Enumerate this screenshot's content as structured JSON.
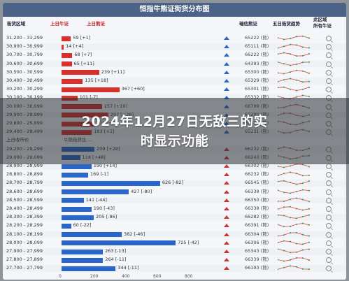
{
  "title": "恒指牛熊证街货分布图",
  "headers": {
    "range": "街货区域",
    "bull_prev": "上日牛证",
    "bear_prev": "上日熊证",
    "code": "瑞信熊证",
    "trend": "五日街货趋势",
    "all_bear_1": "此区域",
    "all_bear_2": "所有牛证"
  },
  "overlay": {
    "line1": "2024年12月27日无敌三的实",
    "line2": "时显示功能"
  },
  "rows": [
    {
      "range": "31,200 - 31,299",
      "value": "59 [+1]",
      "bar": 59,
      "code": "65222 (熊)",
      "color": "red"
    },
    {
      "range": "30,900 - 30,999",
      "value": "14 [+4]",
      "bar": 14,
      "code": "65111 (熊)",
      "color": "red"
    },
    {
      "range": "30,700 - 30,799",
      "value": "68 [+7]",
      "bar": 68,
      "code": "66222 (熊)",
      "color": "red"
    },
    {
      "range": "30,600 - 30,699",
      "value": "65 [+11]",
      "bar": 65,
      "code": "64393 (熊)",
      "color": "red"
    },
    {
      "range": "30,500 - 30,599",
      "value": "239 [+11]",
      "bar": 239,
      "code": "65300 (熊)",
      "color": "red"
    },
    {
      "range": "30,400 - 30,499",
      "value": "135 [+18]",
      "bar": 135,
      "code": "65329 (熊)",
      "color": "red"
    },
    {
      "range": "30,200 - 30,299",
      "value": "367 [+60]",
      "bar": 367,
      "code": "65301 (熊)",
      "color": "red"
    },
    {
      "range": "30,100 - 30,199",
      "value": "101 [-7]",
      "bar": 101,
      "code": "65332 (熊)",
      "color": "red"
    },
    {
      "range": "30,000 - 30,099",
      "value": "257 [+10]",
      "bar": 257,
      "code": "66799 (熊)",
      "color": "red"
    },
    {
      "range": "29,900 - 29,999",
      "value": "297 [+28]",
      "bar": 297,
      "code": "65290 (熊)",
      "color": "red"
    },
    {
      "range": "29,800 - 29,899",
      "value": "208 [+5]",
      "bar": 208,
      "code": "65380 (熊)",
      "color": "red"
    },
    {
      "range": "29,400 - 29,499",
      "value": "193 [+1]",
      "bar": 193,
      "code": "65231 (熊)",
      "color": "red"
    },
    {
      "range": "上日收市价",
      "value": "牛熊街货比 ...",
      "bar": 0,
      "code": "",
      "color": "none"
    },
    {
      "range": "29,200 - 29,299",
      "value": "209 [+28]",
      "bar": 209,
      "code": "66232 (熊)",
      "color": "blue"
    },
    {
      "range": "29,000 - 29,099",
      "value": "118 [+48]",
      "bar": 118,
      "code": "66243 (熊)",
      "color": "blue"
    },
    {
      "range": "28,900 - 28,999",
      "value": "190 [+14]",
      "bar": 190,
      "code": "66302 (熊)",
      "color": "blue"
    },
    {
      "range": "28,800 - 28,899",
      "value": "169 [-1]",
      "bar": 169,
      "code": "66232 (熊)",
      "color": "blue"
    },
    {
      "range": "28,700 - 28,799",
      "value": "626 [-82]",
      "bar": 626,
      "code": "66545 (熊)",
      "color": "blue"
    },
    {
      "range": "28,600 - 28,699",
      "value": "427 [-80]",
      "bar": 427,
      "code": "66338 (熊)",
      "color": "blue"
    },
    {
      "range": "28,500 - 28,599",
      "value": "141 [-44]",
      "bar": 141,
      "code": "66350 (熊)",
      "color": "blue"
    },
    {
      "range": "28,400 - 28,499",
      "value": "190 [-43]",
      "bar": 190,
      "code": "66338 (熊)",
      "color": "blue"
    },
    {
      "range": "28,300 - 28,399",
      "value": "205 [-86]",
      "bar": 205,
      "code": "66282 (熊)",
      "color": "blue"
    },
    {
      "range": "28,200 - 28,299",
      "value": "60 [-22]",
      "bar": 60,
      "code": "66391 (熊)",
      "color": "blue"
    },
    {
      "range": "28,100 - 28,199",
      "value": "382 [-46]",
      "bar": 382,
      "code": "66304 (熊)",
      "color": "blue"
    },
    {
      "range": "28,000 - 28,099",
      "value": "725 [-42]",
      "bar": 725,
      "code": "66306 (熊)",
      "color": "blue"
    },
    {
      "range": "27,900 - 27,999",
      "value": "263 [-13]",
      "bar": 263,
      "code": "65343 (熊)",
      "color": "blue"
    },
    {
      "range": "27,800 - 27,899",
      "value": "264 [-11]",
      "bar": 264,
      "code": "66339 (熊)",
      "color": "blue"
    },
    {
      "range": "27,700 - 27,799",
      "value": "344 [-11]",
      "bar": 344,
      "code": "66193 (熊)",
      "color": "blue"
    }
  ],
  "axis_ticks": [
    "0",
    "200",
    "400",
    "600",
    "800"
  ],
  "colors": {
    "red": "#d9302c",
    "blue": "#2a66c9",
    "title_bg": "#4d6287"
  }
}
